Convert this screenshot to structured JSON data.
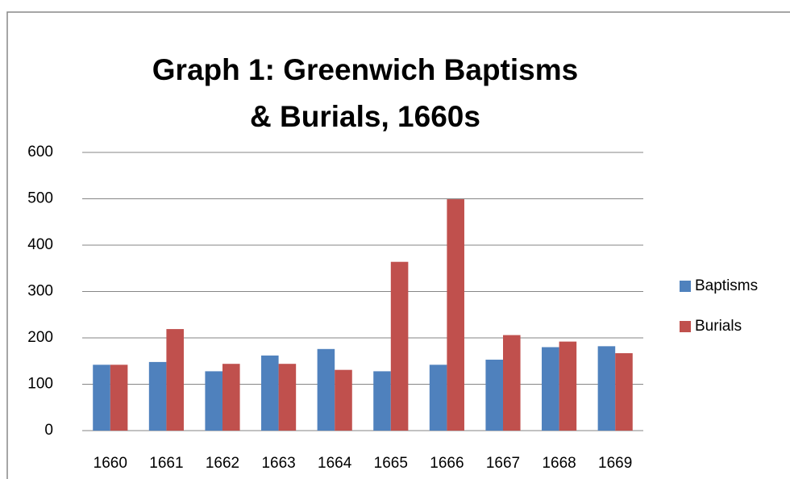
{
  "chart_data": {
    "type": "bar",
    "title": "Graph 1: Greenwich Baptisms & Burials, 1660s",
    "categories": [
      "1660",
      "1661",
      "1662",
      "1663",
      "1664",
      "1665",
      "1666",
      "1667",
      "1668",
      "1669"
    ],
    "series": [
      {
        "name": "Baptisms",
        "color": "#4f81bd",
        "values": [
          142,
          148,
          128,
          162,
          176,
          128,
          142,
          153,
          180,
          182
        ]
      },
      {
        "name": "Burials",
        "color": "#c0504d",
        "values": [
          142,
          219,
          144,
          144,
          131,
          364,
          499,
          206,
          192,
          167
        ]
      }
    ],
    "ylim": [
      0,
      600
    ],
    "yticks": [
      0,
      100,
      200,
      300,
      400,
      500,
      600
    ],
    "grid": true,
    "legend": "right"
  }
}
